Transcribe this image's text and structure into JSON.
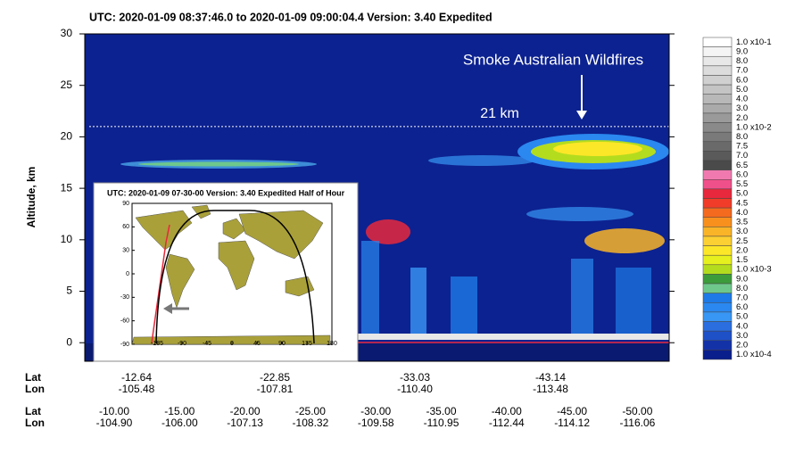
{
  "chart_data": {
    "type": "curtain",
    "title": "UTC:  2020-01-09 08:37:46.0  to  2020-01-09 09:00:04.4    Version: 3.40  Expedited",
    "ylabel": "Altitude, km",
    "ylim": [
      -1.8,
      30
    ],
    "yticks": [
      0,
      5,
      10,
      15,
      20,
      25,
      30
    ],
    "annotation": "Smoke Australian Wildfires",
    "reference_line": {
      "value": 21,
      "label": "21 km"
    },
    "colorbar": [
      {
        "value": 0.1,
        "label": "1.0 x10-1",
        "color": "#ffffff"
      },
      {
        "value": 0.09,
        "label": "9.0",
        "color": "#f4f4f4"
      },
      {
        "value": 0.08,
        "label": "8.0",
        "color": "#e8e8e8"
      },
      {
        "value": 0.07,
        "label": "7.0",
        "color": "#dcdcdc"
      },
      {
        "value": 0.06,
        "label": "6.0",
        "color": "#d0d0d0"
      },
      {
        "value": 0.05,
        "label": "5.0",
        "color": "#c4c4c4"
      },
      {
        "value": 0.04,
        "label": "4.0",
        "color": "#b8b8b8"
      },
      {
        "value": 0.03,
        "label": "3.0",
        "color": "#aaaaaa"
      },
      {
        "value": 0.02,
        "label": "2.0",
        "color": "#9a9a9a"
      },
      {
        "value": 0.01,
        "label": "1.0 x10-2",
        "color": "#8a8a8a"
      },
      {
        "value": 0.008,
        "label": "8.0",
        "color": "#7a7a7a"
      },
      {
        "value": 0.0075,
        "label": "7.5",
        "color": "#6a6a6a"
      },
      {
        "value": 0.007,
        "label": "7.0",
        "color": "#5a5a5a"
      },
      {
        "value": 0.0065,
        "label": "6.5",
        "color": "#4a4a4a"
      },
      {
        "value": 0.006,
        "label": "6.0",
        "color": "#f07ab0"
      },
      {
        "value": 0.0055,
        "label": "5.5",
        "color": "#f0508a"
      },
      {
        "value": 0.005,
        "label": "5.0",
        "color": "#e8283c"
      },
      {
        "value": 0.0045,
        "label": "4.5",
        "color": "#f03c28"
      },
      {
        "value": 0.004,
        "label": "4.0",
        "color": "#f46a1e"
      },
      {
        "value": 0.0035,
        "label": "3.5",
        "color": "#f8901e"
      },
      {
        "value": 0.003,
        "label": "3.0",
        "color": "#fab428"
      },
      {
        "value": 0.0025,
        "label": "2.5",
        "color": "#fcd032"
      },
      {
        "value": 0.002,
        "label": "2.0",
        "color": "#fce628"
      },
      {
        "value": 0.0015,
        "label": "1.5",
        "color": "#e6f01e"
      },
      {
        "value": 0.001,
        "label": "1.0 x10-3",
        "color": "#b4dc1e"
      },
      {
        "value": 0.0009,
        "label": "9.0",
        "color": "#3c9c3c"
      },
      {
        "value": 0.0008,
        "label": "8.0",
        "color": "#6ec88c"
      },
      {
        "value": 0.0007,
        "label": "7.0",
        "color": "#1e7ae6"
      },
      {
        "value": 0.0006,
        "label": "6.0",
        "color": "#2a88f0"
      },
      {
        "value": 0.0005,
        "label": "5.0",
        "color": "#3896f4"
      },
      {
        "value": 0.0004,
        "label": "4.0",
        "color": "#2a6ee0"
      },
      {
        "value": 0.0003,
        "label": "3.0",
        "color": "#1e50c8"
      },
      {
        "value": 0.0002,
        "label": "2.0",
        "color": "#1432a8"
      },
      {
        "value": 0.0001,
        "label": "1.0 x10-4",
        "color": "#0a1e8c"
      }
    ],
    "row_labels": [
      "Lat",
      "Lon"
    ],
    "upper_axis": {
      "lat": [
        "-12.64",
        "-22.85",
        "-33.03",
        "-43.14"
      ],
      "lon": [
        "-105.48",
        "-107.81",
        "-110.40",
        "-113.48"
      ]
    },
    "lower_axis": {
      "lat": [
        "-10.00",
        "-15.00",
        "-20.00",
        "-25.00",
        "-30.00",
        "-35.00",
        "-40.00",
        "-45.00",
        "-50.00"
      ],
      "lon": [
        "-104.90",
        "-106.00",
        "-107.13",
        "-108.32",
        "-109.58",
        "-110.95",
        "-112.44",
        "-114.12",
        "-116.06"
      ]
    },
    "inset": {
      "title": "UTC: 2020-01-09  07-30-00    Version: 3.40  Expedited    Half of Hour",
      "xlim": [
        -180,
        180
      ],
      "xticks": [
        -135,
        -90,
        -45,
        0,
        45,
        90,
        135,
        180
      ],
      "ylim": [
        -90,
        90
      ],
      "yticks": [
        90,
        60,
        30,
        0,
        -30,
        -60,
        -90
      ]
    }
  }
}
